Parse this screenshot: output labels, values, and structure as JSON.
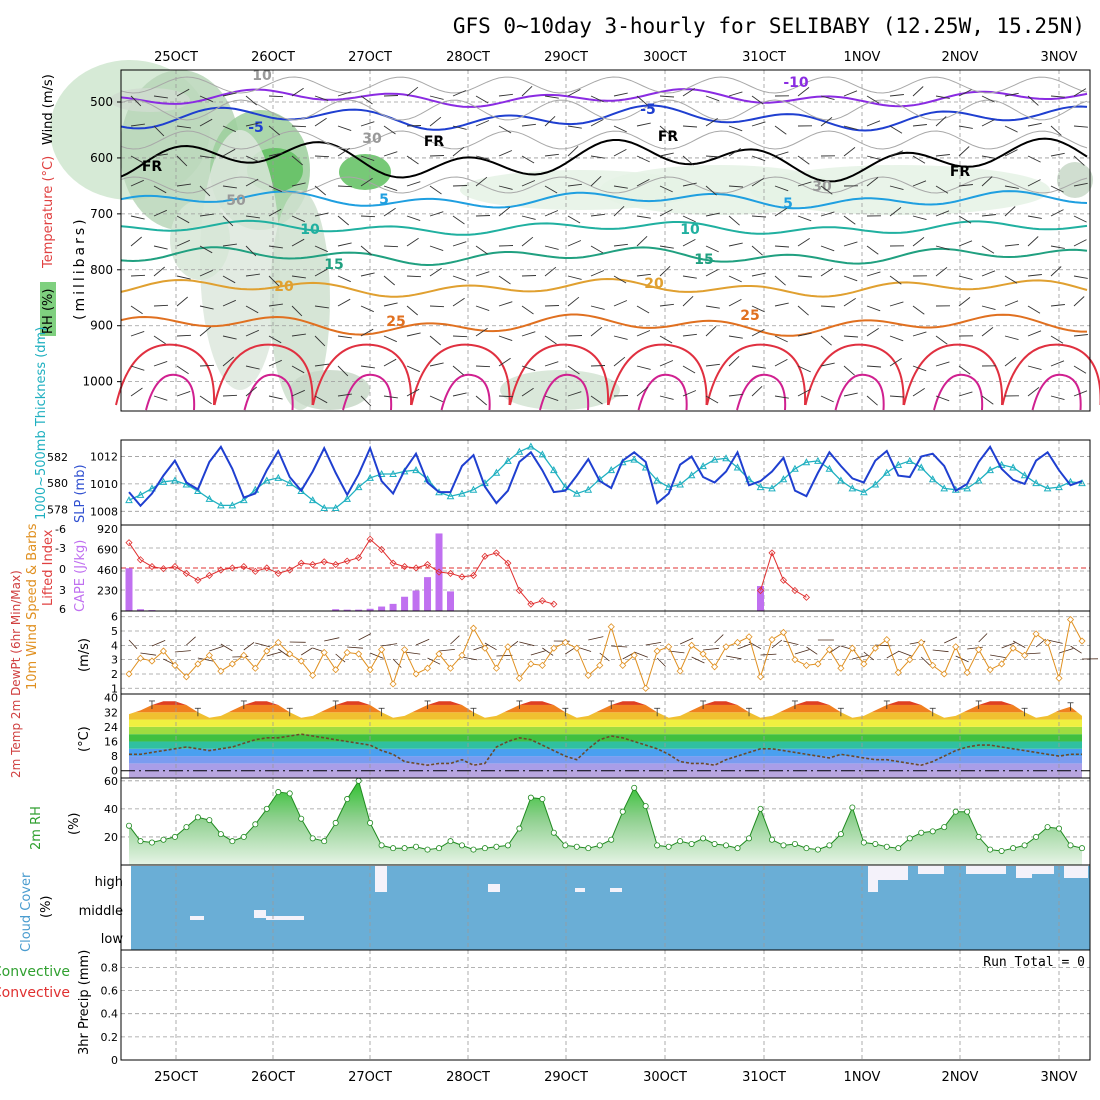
{
  "title": "GFS 0~10day 3-hourly for SELIBABY (12.25W, 15.25N)",
  "date_ticks": [
    "25OCT",
    "26OCT",
    "27OCT",
    "28OCT",
    "29OCT",
    "30OCT",
    "31OCT",
    "1NOV",
    "2NOV",
    "3NOV"
  ],
  "colors": {
    "frame": "#000000",
    "grid": "#9a9a9a",
    "blue": "#1f3fd0",
    "cyan": "#1fb0c0",
    "red": "#e03030",
    "purple": "#c070f0",
    "orange": "#e09020",
    "green": "#30a030",
    "cloud": "#6aaed6"
  },
  "chart_data": [
    {
      "id": "upper",
      "type": "contour",
      "ylabel": "(millibars)",
      "side_labels": [
        "Wind (m/s)",
        "Temperature (°C)",
        "RH (%)"
      ],
      "yticks": [
        500,
        600,
        700,
        800,
        900,
        1000
      ],
      "contour_labels": [
        "-10",
        "-5",
        "-5",
        "FR",
        "FR",
        "FR",
        "FR",
        "5",
        "5",
        "10",
        "10",
        "15",
        "15",
        "20",
        "20",
        "25",
        "25",
        "30",
        "30",
        "50",
        "10"
      ]
    },
    {
      "id": "slp_thickness",
      "type": "line",
      "left_label": "1000~500mb Thickness (dm)",
      "right_label": "SLP (mb)",
      "left_ticks": [
        578,
        580,
        582
      ],
      "right_ticks": [
        1008,
        1010,
        1012
      ],
      "series": [
        {
          "name": "SLP (mb)",
          "ylim": [
            1007,
            1013.2
          ],
          "values": [
            1009.4,
            1008.4,
            1009.3,
            1010.6,
            1011.7,
            1010.1,
            1009.6,
            1011.6,
            1012.7,
            1011.1,
            1009.0,
            1009.3,
            1011.0,
            1012.4,
            1010.5,
            1009.5,
            1010.9,
            1012.6,
            1010.8,
            1009.2,
            1010.7,
            1012.6,
            1010.2,
            1009.3,
            1011.0,
            1012.2,
            1010.1,
            1009.4,
            1009.4,
            1011.3,
            1012.1,
            1009.8,
            1008.6,
            1009.5,
            1011.6,
            1012.3,
            1011.0,
            1009.4,
            1009.5,
            1010.6,
            1011.8,
            1010.2,
            1009.7,
            1011.7,
            1012.3,
            1011.6,
            1008.6,
            1009.3,
            1011.4,
            1012.0,
            1010.5,
            1010.1,
            1010.9,
            1012.3,
            1009.9,
            1010.2,
            1010.9,
            1011.9,
            1009.5,
            1009.1,
            1010.8,
            1012.3,
            1011.3,
            1010.4,
            1010.1,
            1011.7,
            1012.4,
            1010.6,
            1010.5,
            1012.0,
            1012.2,
            1011.3,
            1009.5,
            1010.0,
            1011.6,
            1012.7,
            1011.1,
            1010.3,
            1010.0,
            1011.7,
            1012.3,
            1011.0,
            1009.9,
            1010.2
          ]
        },
        {
          "name": "Thickness (dm)",
          "ylim": [
            576.8,
            583.3
          ],
          "values": [
            578.7,
            579.1,
            579.6,
            580.1,
            580.2,
            579.9,
            579.4,
            578.8,
            578.3,
            578.3,
            578.7,
            579.5,
            580.2,
            580.4,
            580.0,
            579.4,
            578.7,
            578.1,
            578.1,
            578.8,
            579.7,
            580.4,
            580.7,
            580.7,
            580.9,
            581.0,
            580.3,
            579.3,
            579.0,
            579.2,
            579.5,
            580.0,
            580.8,
            581.7,
            582.4,
            582.8,
            582.2,
            581.0,
            579.7,
            579.2,
            579.5,
            580.3,
            581.0,
            581.6,
            581.8,
            581.2,
            580.2,
            579.7,
            579.9,
            580.6,
            581.3,
            581.8,
            581.9,
            581.2,
            580.3,
            579.7,
            579.6,
            580.3,
            581.1,
            581.6,
            581.7,
            581.1,
            580.2,
            579.6,
            579.3,
            579.9,
            580.8,
            581.4,
            581.7,
            581.2,
            580.3,
            579.6,
            579.5,
            579.6,
            580.2,
            581.0,
            581.4,
            581.2,
            580.6,
            580.0,
            579.6,
            579.7,
            580.1,
            580.0
          ]
        }
      ]
    },
    {
      "id": "lifted_cape",
      "type": "bar+line",
      "left_label": "Lifted Index",
      "right_label": "CAPE (J/kg)",
      "left_ticks": [
        "6",
        "3",
        "0",
        "-3",
        "-6"
      ],
      "right_ticks": [
        230,
        460,
        690,
        920
      ],
      "series": [
        {
          "name": "Lifted Index",
          "ylim": [
            6,
            -6
          ],
          "values": [
            -4.0,
            -1.5,
            -0.5,
            -0.2,
            -0.5,
            0.5,
            1.5,
            0.8,
            0.0,
            -0.3,
            -0.5,
            0.2,
            -0.3,
            0.5,
            0.0,
            -1.0,
            -0.8,
            -1.2,
            -0.8,
            -1.3,
            -1.8,
            -4.5,
            -3.0,
            -1.0,
            -0.5,
            -0.3,
            -0.8,
            0.3,
            0.5,
            1.0,
            0.8,
            -2.0,
            -2.5,
            -1.0,
            3.0,
            5.0,
            4.5,
            5.0,
            6,
            6,
            6,
            6,
            6,
            6,
            6,
            6,
            6,
            6,
            6,
            6,
            6,
            6,
            6,
            6,
            6,
            3.0,
            -2.5,
            1.5,
            3.0,
            4.0,
            6,
            6,
            6,
            6,
            6,
            6,
            6,
            6,
            6,
            6,
            6,
            6,
            6,
            6,
            6,
            6,
            6,
            6,
            6,
            6,
            6,
            6,
            6,
            6
          ]
        },
        {
          "name": "CAPE (J/kg)",
          "ylim": [
            0,
            920
          ],
          "values": [
            480,
            20,
            10,
            5,
            0,
            0,
            0,
            0,
            0,
            0,
            0,
            0,
            0,
            0,
            0,
            0,
            0,
            0,
            20,
            15,
            15,
            25,
            50,
            80,
            160,
            230,
            380,
            870,
            220,
            5,
            0,
            0,
            0,
            0,
            0,
            0,
            0,
            0,
            0,
            0,
            0,
            0,
            0,
            0,
            0,
            0,
            0,
            0,
            0,
            0,
            0,
            0,
            0,
            0,
            0,
            280,
            0,
            0,
            0,
            0,
            0,
            0,
            0,
            0,
            0,
            0,
            0,
            0,
            0,
            0,
            0,
            0,
            0,
            0,
            0,
            0,
            0,
            0,
            0,
            0,
            0,
            0,
            0,
            0
          ]
        }
      ]
    },
    {
      "id": "wind10m",
      "type": "line",
      "left_label": "10m Wind Speed & Barbs",
      "unit": "(m/s)",
      "yticks": [
        1,
        2,
        3,
        4,
        5,
        6
      ],
      "ylim": [
        0.6,
        6.4
      ],
      "values": [
        2.0,
        3.1,
        2.9,
        3.6,
        2.6,
        1.8,
        2.7,
        3.3,
        2.2,
        2.7,
        3.3,
        2.4,
        3.6,
        4.2,
        3.4,
        2.9,
        1.9,
        3.5,
        2.3,
        3.5,
        3.4,
        2.3,
        3.7,
        1.3,
        3.7,
        2.0,
        2.4,
        3.4,
        2.4,
        3.3,
        5.2,
        3.8,
        2.4,
        3.9,
        1.7,
        2.7,
        2.6,
        3.8,
        4.2,
        3.8,
        1.9,
        2.6,
        5.3,
        2.6,
        3.3,
        1.0,
        3.6,
        3.9,
        2.2,
        4.0,
        3.4,
        2.5,
        3.9,
        4.2,
        4.6,
        1.8,
        4.4,
        4.9,
        3.0,
        2.6,
        2.7,
        3.7,
        2.4,
        3.8,
        2.7,
        3.8,
        4.4,
        2.1,
        3.0,
        4.2,
        2.6,
        2.0,
        3.9,
        2.1,
        3.7,
        2.3,
        2.7,
        3.8,
        3.3,
        4.8,
        4.2,
        1.7,
        5.8,
        4.3
      ]
    },
    {
      "id": "temp2m",
      "type": "area",
      "left_label": "2m Temp 2m DewPt (6hr Min/Max)",
      "unit": "(°C)",
      "yticks": [
        0,
        8,
        16,
        24,
        32,
        40
      ],
      "ylim": [
        -4,
        42
      ],
      "series": [
        {
          "name": "2m Temp",
          "values": [
            31,
            33,
            36,
            38,
            38,
            36,
            32,
            29,
            30,
            33,
            36,
            38,
            38,
            36,
            32,
            29,
            30,
            33,
            36,
            38,
            38,
            36,
            32,
            29,
            30,
            33,
            36,
            38,
            38,
            36,
            32,
            29,
            30,
            33,
            36,
            38,
            38,
            36,
            32,
            29,
            30,
            33,
            36,
            38,
            38,
            36,
            32,
            29,
            30,
            33,
            36,
            38,
            38,
            36,
            32,
            29,
            30,
            33,
            36,
            38,
            38,
            36,
            32,
            29,
            30,
            33,
            36,
            38,
            38,
            36,
            32,
            29,
            30,
            33,
            36,
            38,
            38,
            36,
            32,
            29,
            30,
            33,
            35,
            30
          ]
        },
        {
          "name": "2m DewPt",
          "values": [
            9,
            9,
            10,
            11,
            12,
            13,
            12,
            11,
            12,
            13,
            15,
            17,
            18,
            18,
            19,
            20,
            19,
            18,
            17,
            16,
            15,
            14,
            11,
            9,
            5,
            4,
            3,
            4,
            4,
            6,
            3,
            4,
            13,
            16,
            18,
            17,
            14,
            11,
            8,
            6,
            12,
            17,
            19,
            18,
            16,
            14,
            12,
            9,
            5,
            4,
            4,
            3,
            6,
            8,
            10,
            12,
            12,
            11,
            10,
            9,
            8,
            7,
            9,
            8,
            7,
            6,
            6,
            5,
            4,
            3,
            5,
            8,
            11,
            13,
            14,
            14,
            13,
            12,
            11,
            10,
            9,
            8,
            9,
            9
          ]
        }
      ]
    },
    {
      "id": "rh2m",
      "type": "area",
      "left_label": "2m RH",
      "unit": "(%)",
      "yticks": [
        20,
        40,
        60
      ],
      "ylim": [
        0,
        62
      ],
      "values": [
        28,
        17,
        16,
        18,
        20,
        27,
        34,
        32,
        22,
        17,
        20,
        29,
        40,
        52,
        51,
        33,
        19,
        17,
        30,
        47,
        60,
        30,
        14,
        12,
        12,
        13,
        11,
        12,
        17,
        14,
        11,
        12,
        13,
        14,
        26,
        48,
        47,
        23,
        14,
        13,
        12,
        14,
        18,
        38,
        55,
        42,
        14,
        13,
        17,
        15,
        19,
        15,
        14,
        12,
        19,
        40,
        18,
        14,
        15,
        12,
        11,
        14,
        22,
        41,
        16,
        15,
        13,
        12,
        19,
        23,
        24,
        27,
        38,
        38,
        20,
        11,
        10,
        12,
        14,
        20,
        27,
        26,
        14,
        12
      ]
    },
    {
      "id": "cloud",
      "type": "heatmap",
      "left_label": "Cloud Cover",
      "unit": "(%)",
      "levels": [
        "high",
        "middle",
        "low"
      ]
    },
    {
      "id": "precip",
      "type": "bar",
      "left_label": "Total / Rain Convective",
      "unit": "3hr Precip (mm)",
      "yticks": [
        "0",
        "0.2",
        "0.4",
        "0.6",
        "0.8"
      ],
      "ylim": [
        0,
        0.95
      ],
      "run_total": "Run Total = 0",
      "values": []
    }
  ]
}
